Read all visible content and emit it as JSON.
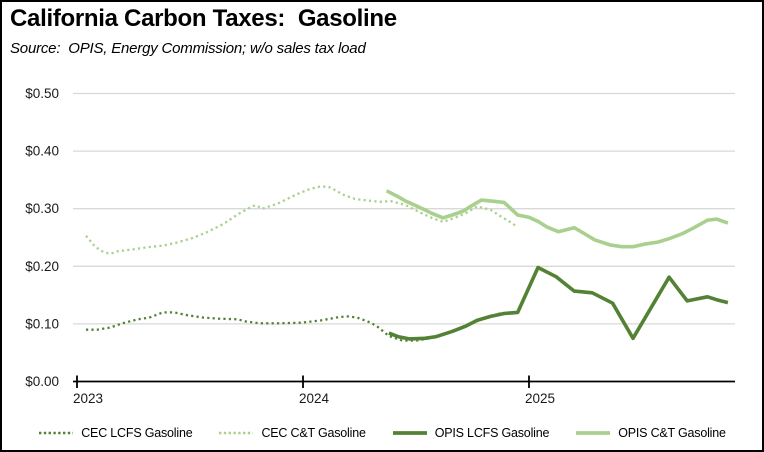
{
  "header": {
    "title": "California Carbon Taxes:  Gasoline",
    "subtitle": "Source:  OPIS, Energy Commission; w/o sales tax load"
  },
  "colors": {
    "dark_green": "#548235",
    "light_green": "#A9D08E",
    "gridline": "#D9D9D9",
    "axis_line": "#000000",
    "label_text": "#1A1A1A"
  },
  "axes": {
    "y_ticks": [
      {
        "value": 0.5,
        "label": "$0.50"
      },
      {
        "value": 0.4,
        "label": "$0.40"
      },
      {
        "value": 0.3,
        "label": "$0.30"
      },
      {
        "value": 0.2,
        "label": "$0.20"
      },
      {
        "value": 0.1,
        "label": "$0.10"
      },
      {
        "value": 0.0,
        "label": "$0.00"
      }
    ],
    "x_ticks": [
      {
        "year": 2023,
        "label": "2023"
      },
      {
        "year": 2024,
        "label": "2024"
      },
      {
        "year": 2025,
        "label": "2025"
      }
    ]
  },
  "chart_data": {
    "type": "line",
    "title": "California Carbon Taxes: Gasoline",
    "xlabel": "",
    "ylabel": "",
    "ylim": [
      0,
      0.5
    ],
    "xlim": [
      2023.0,
      2025.93
    ],
    "grid": true,
    "legend_position": "bottom",
    "x_units": "decimal year",
    "y_units": "dollars per gallon",
    "series": [
      {
        "name": "CEC LCFS Gasoline",
        "color": "#548235",
        "style": "dotted",
        "points": [
          [
            2023.04,
            0.09
          ],
          [
            2023.09,
            0.09
          ],
          [
            2023.15,
            0.094
          ],
          [
            2023.2,
            0.101
          ],
          [
            2023.27,
            0.108
          ],
          [
            2023.32,
            0.111
          ],
          [
            2023.38,
            0.12
          ],
          [
            2023.43,
            0.12
          ],
          [
            2023.49,
            0.115
          ],
          [
            2023.56,
            0.111
          ],
          [
            2023.63,
            0.109
          ],
          [
            2023.71,
            0.108
          ],
          [
            2023.75,
            0.104
          ],
          [
            2023.81,
            0.101
          ],
          [
            2023.9,
            0.101
          ],
          [
            2023.99,
            0.102
          ],
          [
            2024.08,
            0.106
          ],
          [
            2024.16,
            0.112
          ],
          [
            2024.2,
            0.113
          ],
          [
            2024.24,
            0.111
          ],
          [
            2024.3,
            0.102
          ],
          [
            2024.33,
            0.095
          ],
          [
            2024.38,
            0.079
          ],
          [
            2024.44,
            0.071
          ],
          [
            2024.5,
            0.071
          ],
          [
            2024.53,
            0.073
          ],
          [
            2024.61,
            0.079
          ],
          [
            2024.66,
            0.088
          ],
          [
            2024.7,
            0.094
          ],
          [
            2024.74,
            0.101
          ],
          [
            2024.79,
            0.108
          ],
          [
            2024.84,
            0.113
          ],
          [
            2024.87,
            0.118
          ],
          [
            2024.93,
            0.119
          ]
        ]
      },
      {
        "name": "CEC C&T Gasoline",
        "color": "#A9D08E",
        "style": "dotted",
        "points": [
          [
            2023.04,
            0.253
          ],
          [
            2023.08,
            0.234
          ],
          [
            2023.12,
            0.224
          ],
          [
            2023.15,
            0.222
          ],
          [
            2023.18,
            0.226
          ],
          [
            2023.24,
            0.229
          ],
          [
            2023.31,
            0.233
          ],
          [
            2023.38,
            0.236
          ],
          [
            2023.44,
            0.241
          ],
          [
            2023.51,
            0.249
          ],
          [
            2023.58,
            0.26
          ],
          [
            2023.65,
            0.274
          ],
          [
            2023.71,
            0.29
          ],
          [
            2023.77,
            0.303
          ],
          [
            2023.79,
            0.306
          ],
          [
            2023.82,
            0.3
          ],
          [
            2023.89,
            0.309
          ],
          [
            2023.94,
            0.319
          ],
          [
            2023.99,
            0.328
          ],
          [
            2024.03,
            0.334
          ],
          [
            2024.08,
            0.339
          ],
          [
            2024.12,
            0.337
          ],
          [
            2024.18,
            0.324
          ],
          [
            2024.23,
            0.317
          ],
          [
            2024.29,
            0.314
          ],
          [
            2024.34,
            0.312
          ],
          [
            2024.39,
            0.313
          ],
          [
            2024.45,
            0.307
          ],
          [
            2024.52,
            0.293
          ],
          [
            2024.57,
            0.284
          ],
          [
            2024.62,
            0.277
          ],
          [
            2024.67,
            0.284
          ],
          [
            2024.72,
            0.292
          ],
          [
            2024.77,
            0.304
          ],
          [
            2024.83,
            0.298
          ],
          [
            2024.87,
            0.288
          ],
          [
            2024.92,
            0.276
          ],
          [
            2024.95,
            0.268
          ]
        ]
      },
      {
        "name": "OPIS LCFS Gasoline",
        "color": "#548235",
        "style": "solid",
        "points": [
          [
            2024.38,
            0.084
          ],
          [
            2024.42,
            0.078
          ],
          [
            2024.47,
            0.074
          ],
          [
            2024.54,
            0.075
          ],
          [
            2024.59,
            0.078
          ],
          [
            2024.66,
            0.087
          ],
          [
            2024.72,
            0.096
          ],
          [
            2024.77,
            0.106
          ],
          [
            2024.83,
            0.113
          ],
          [
            2024.89,
            0.118
          ],
          [
            2024.95,
            0.12
          ],
          [
            2025.04,
            0.198
          ],
          [
            2025.12,
            0.182
          ],
          [
            2025.2,
            0.157
          ],
          [
            2025.28,
            0.154
          ],
          [
            2025.37,
            0.136
          ],
          [
            2025.46,
            0.075
          ],
          [
            2025.54,
            0.128
          ],
          [
            2025.62,
            0.181
          ],
          [
            2025.7,
            0.14
          ],
          [
            2025.79,
            0.147
          ],
          [
            2025.83,
            0.142
          ],
          [
            2025.88,
            0.137
          ]
        ]
      },
      {
        "name": "OPIS C&T Gasoline",
        "color": "#A9D08E",
        "style": "solid",
        "points": [
          [
            2024.37,
            0.331
          ],
          [
            2024.42,
            0.321
          ],
          [
            2024.45,
            0.314
          ],
          [
            2024.49,
            0.307
          ],
          [
            2024.54,
            0.298
          ],
          [
            2024.57,
            0.292
          ],
          [
            2024.62,
            0.284
          ],
          [
            2024.66,
            0.289
          ],
          [
            2024.71,
            0.296
          ],
          [
            2024.75,
            0.306
          ],
          [
            2024.79,
            0.315
          ],
          [
            2024.84,
            0.313
          ],
          [
            2024.89,
            0.311
          ],
          [
            2024.95,
            0.289
          ],
          [
            2025.0,
            0.285
          ],
          [
            2025.04,
            0.278
          ],
          [
            2025.08,
            0.268
          ],
          [
            2025.13,
            0.26
          ],
          [
            2025.16,
            0.263
          ],
          [
            2025.2,
            0.267
          ],
          [
            2025.24,
            0.258
          ],
          [
            2025.29,
            0.246
          ],
          [
            2025.36,
            0.237
          ],
          [
            2025.41,
            0.234
          ],
          [
            2025.46,
            0.234
          ],
          [
            2025.52,
            0.239
          ],
          [
            2025.57,
            0.242
          ],
          [
            2025.62,
            0.248
          ],
          [
            2025.68,
            0.257
          ],
          [
            2025.73,
            0.267
          ],
          [
            2025.79,
            0.28
          ],
          [
            2025.83,
            0.282
          ],
          [
            2025.88,
            0.275
          ]
        ]
      }
    ]
  }
}
